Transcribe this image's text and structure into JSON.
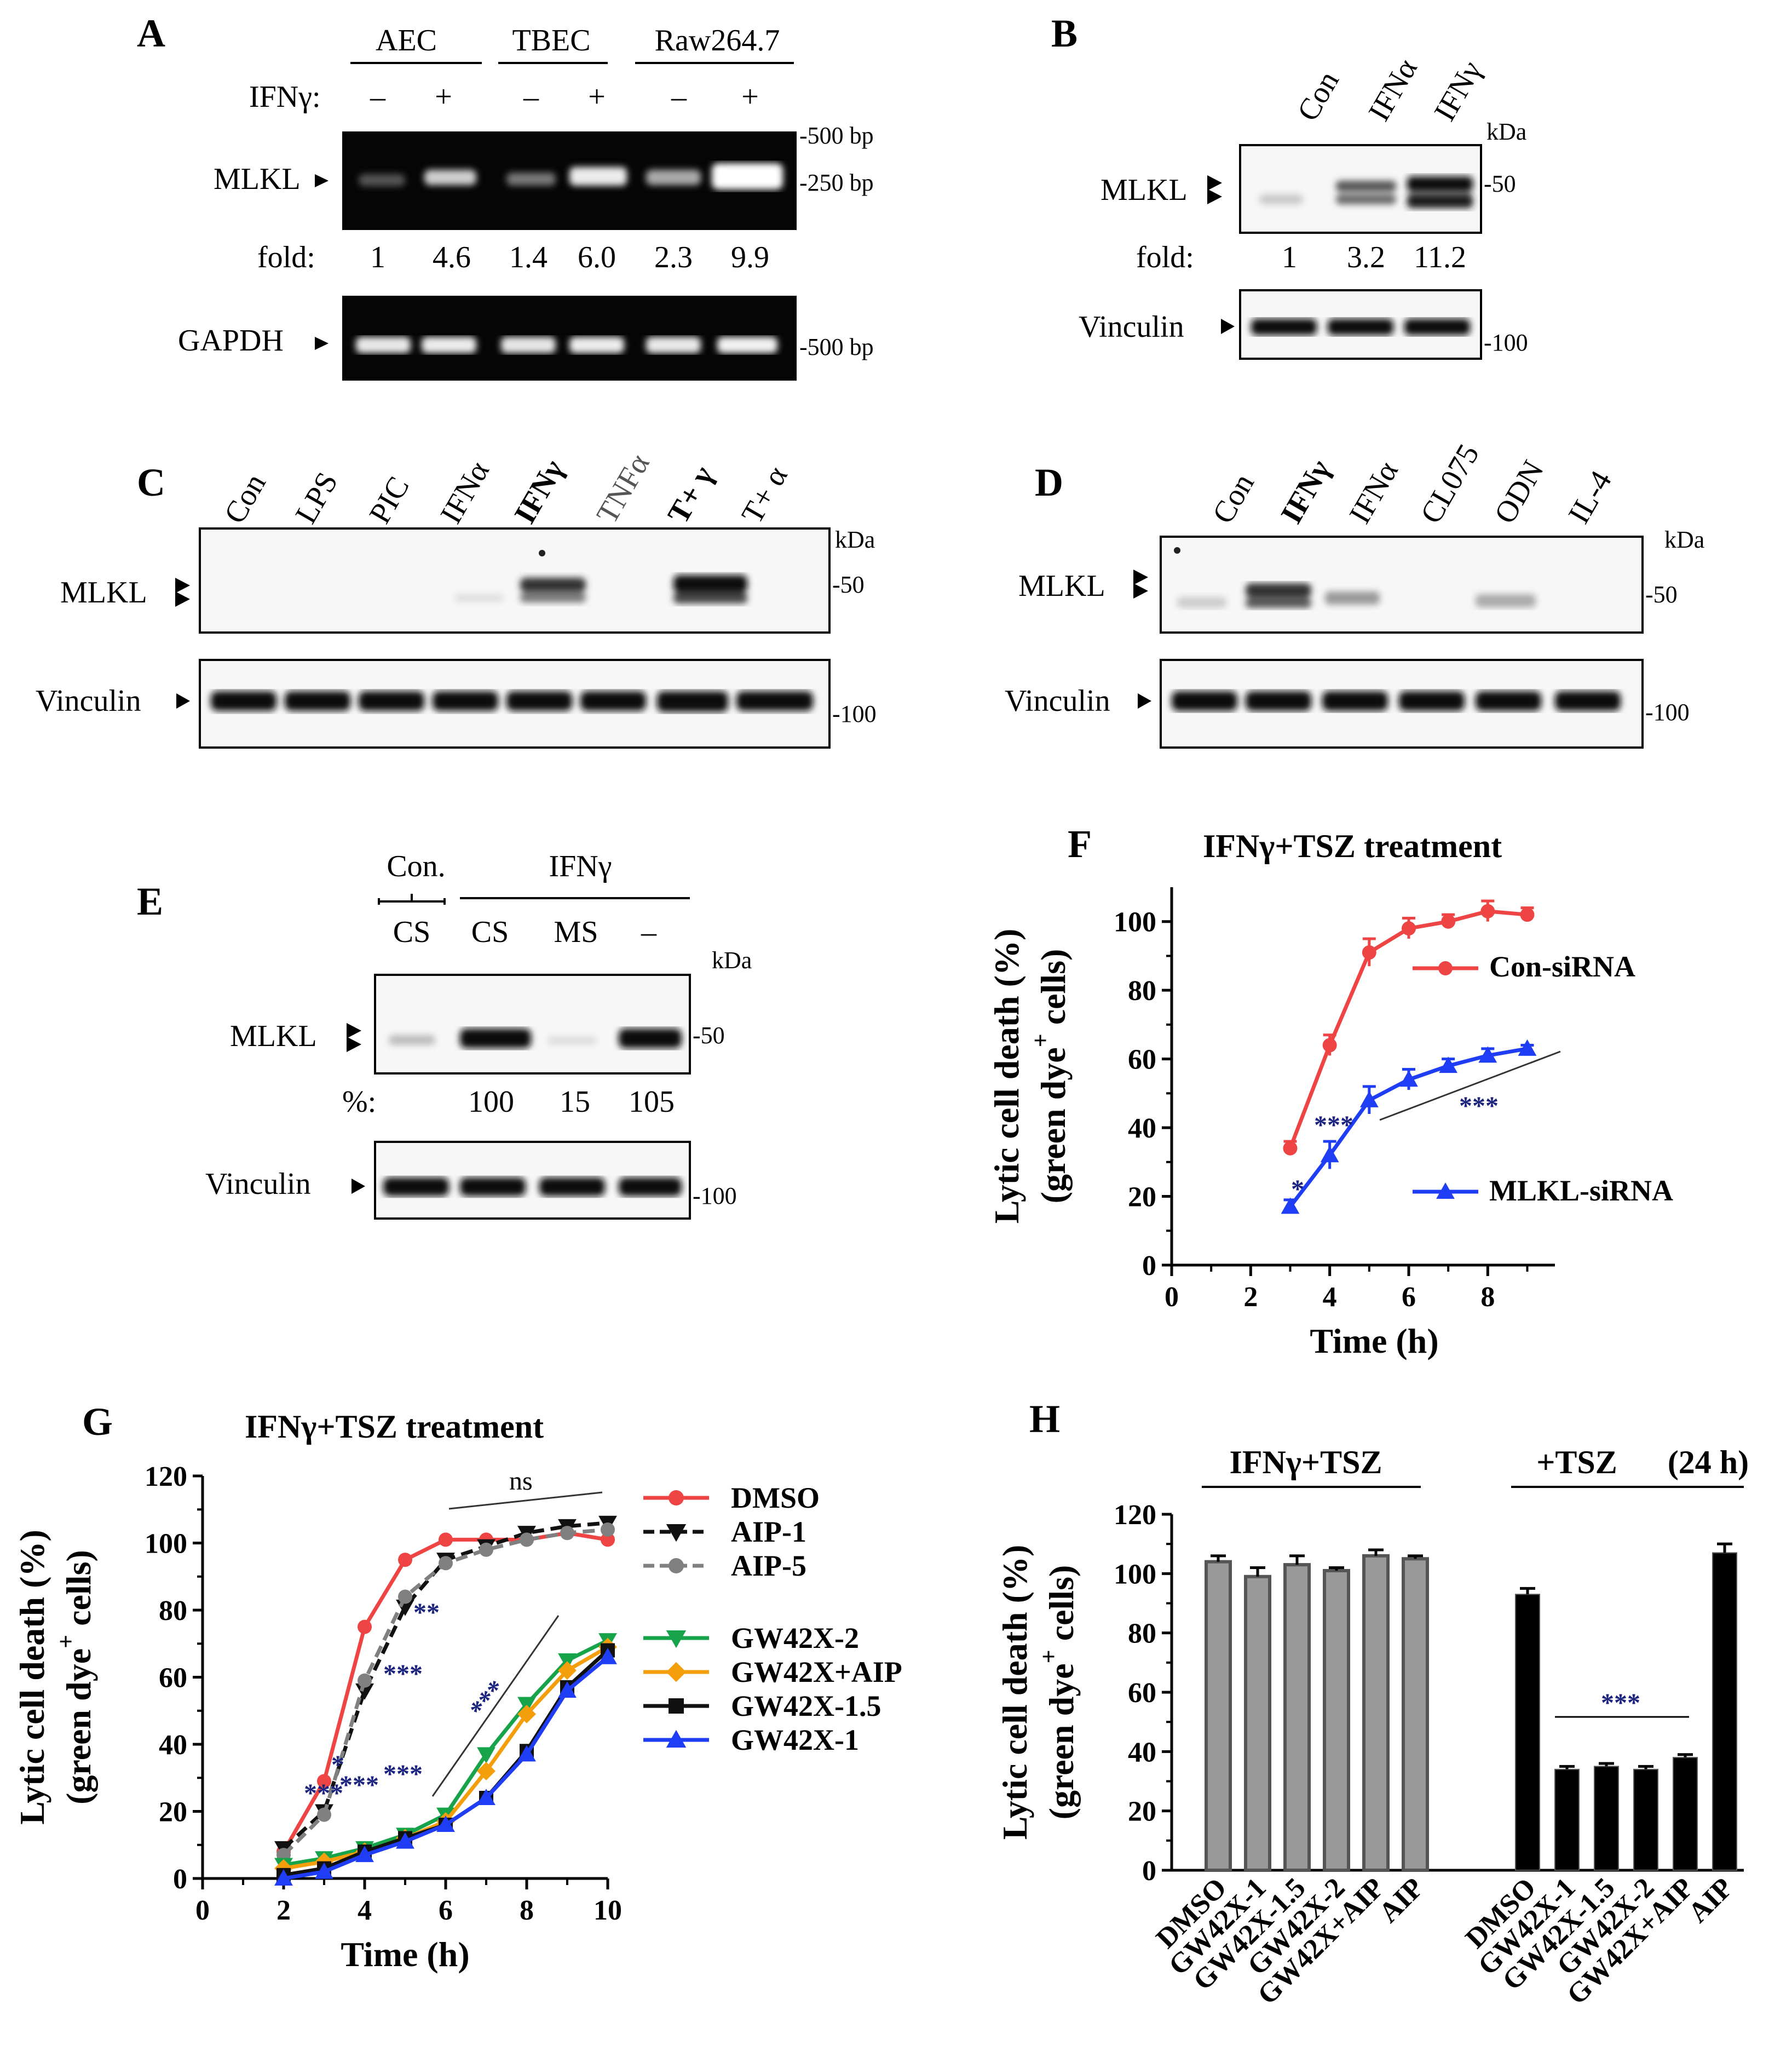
{
  "colors": {
    "red": "#ef4444",
    "blue": "#1e3df5",
    "green": "#16a34a",
    "orange": "#f59e0b",
    "black": "#111111",
    "grey": "#808080",
    "navy": "#1a237e"
  },
  "panels": {
    "A": {
      "letter": "A",
      "groups": [
        "AEC",
        "TBEC",
        "Raw264.7"
      ],
      "treatment_label": "IFNγ:",
      "treatment_marks": [
        "–",
        "+",
        "–",
        "+",
        "–",
        "+"
      ],
      "band1_label": "MLKL",
      "band2_label": "GAPDH",
      "markers": [
        "-500 bp",
        "-250 bp",
        "-500 bp"
      ],
      "fold_label": "fold:",
      "folds": [
        "1",
        "4.6",
        "1.4",
        "6.0",
        "2.3",
        "9.9"
      ]
    },
    "B": {
      "letter": "B",
      "lanes": [
        "Con",
        "IFNα",
        "IFNγ"
      ],
      "kda": "kDa",
      "band1_label": "MLKL",
      "band2_label": "Vinculin",
      "marker1": "-50",
      "marker2": "-100",
      "fold_label": "fold:",
      "folds": [
        "1",
        "3.2",
        "11.2"
      ]
    },
    "C": {
      "letter": "C",
      "lanes": [
        "Con",
        "LPS",
        "PIC",
        "IFNα",
        "IFNγ",
        "TNFα",
        "T+ γ",
        "T+ α"
      ],
      "kda": "kDa",
      "band1_label": "MLKL",
      "band2_label": "Vinculin",
      "marker1": "-50",
      "marker2": "-100"
    },
    "D": {
      "letter": "D",
      "lanes": [
        "Con",
        "IFNγ",
        "IFNα",
        "CL075",
        "ODN",
        "IL-4"
      ],
      "kda": "kDa",
      "band1_label": "MLKL",
      "band2_label": "Vinculin",
      "marker1": "-50",
      "marker2": "-100"
    },
    "E": {
      "letter": "E",
      "group1": "Con.",
      "group2": "IFNγ",
      "lanes": [
        "CS",
        "CS",
        "MS",
        "–"
      ],
      "kda": "kDa",
      "band1_label": "MLKL",
      "band2_label": "Vinculin",
      "marker1": "-50",
      "marker2": "-100",
      "pct_label": "%:",
      "pcts": [
        "",
        "100",
        "15",
        "105"
      ]
    },
    "F": {
      "letter": "F",
      "annotations": {
        "s1": "*",
        "s2": "***",
        "s3": "***"
      }
    },
    "G": {
      "letter": "G",
      "annotations": {
        "ns": "ns",
        "a1": "**",
        "a2": "***",
        "a3": "***",
        "b1": "*",
        "b2": "***",
        "b3": "***",
        "b4": "***"
      }
    },
    "H": {
      "letter": "H",
      "group1": "IFNγ+TSZ",
      "group2": "+TSZ",
      "time_note": "(24 h)",
      "sig": "***"
    }
  },
  "chart_data": [
    {
      "id": "F",
      "type": "line",
      "title": "IFNγ+TSZ treatment",
      "xlabel": "Time (h)",
      "ylabel_line1": "Lytic cell death (%)",
      "ylabel_line2": "(green dye",
      "ylabel_sup": "+",
      "ylabel_end": " cells)",
      "xlim": [
        0,
        9
      ],
      "ylim": [
        0,
        110
      ],
      "xticks": [
        "0",
        "2",
        "4",
        "6",
        "8"
      ],
      "yticks": [
        "0",
        "20",
        "40",
        "60",
        "80",
        "100"
      ],
      "series": [
        {
          "name": "Con-siRNA",
          "color": "#ef4444",
          "marker": "circle",
          "x": [
            3,
            4,
            5,
            6,
            7,
            8,
            9
          ],
          "values": [
            34,
            64,
            91,
            98,
            100,
            103,
            102
          ],
          "err": [
            2,
            3,
            4,
            3,
            2,
            3,
            2
          ]
        },
        {
          "name": "MLKL-siRNA",
          "color": "#1e3df5",
          "marker": "triangle",
          "x": [
            3,
            4,
            5,
            6,
            7,
            8,
            9
          ],
          "values": [
            17,
            32,
            48,
            54,
            58,
            61,
            63
          ],
          "err": [
            2,
            4,
            4,
            3,
            2,
            2,
            1
          ]
        }
      ]
    },
    {
      "id": "G",
      "type": "line",
      "title": "IFNγ+TSZ treatment",
      "xlabel": "Time (h)",
      "ylabel_line1": "Lytic cell death (%)",
      "ylabel_line2": "(green dye",
      "ylabel_sup": "+",
      "ylabel_end": " cells)",
      "xlim": [
        0,
        10
      ],
      "ylim": [
        0,
        120
      ],
      "xticks": [
        "0",
        "2",
        "4",
        "6",
        "8",
        "10"
      ],
      "yticks": [
        "0",
        "20",
        "40",
        "60",
        "80",
        "100",
        "120"
      ],
      "x": [
        2,
        3,
        4,
        5,
        6,
        7,
        8,
        9,
        10
      ],
      "series": [
        {
          "name": "DMSO",
          "color": "#ef4444",
          "marker": "circle",
          "dash": false,
          "values": [
            8,
            29,
            75,
            95,
            101,
            101,
            101,
            103,
            101
          ]
        },
        {
          "name": "AIP-1",
          "color": "#111111",
          "marker": "triangle-down",
          "dash": true,
          "values": [
            9,
            20,
            56,
            81,
            95,
            99,
            103,
            105,
            106
          ]
        },
        {
          "name": "AIP-5",
          "color": "#808080",
          "marker": "circle",
          "dash": true,
          "values": [
            7,
            19,
            59,
            84,
            94,
            98,
            101,
            103,
            104
          ]
        },
        {
          "name": "GW42X-2",
          "color": "#16a34a",
          "marker": "triangle-down",
          "dash": false,
          "values": [
            4,
            6,
            9,
            13,
            19,
            37,
            52,
            65,
            71
          ]
        },
        {
          "name": "GW42X+AIP",
          "color": "#f59e0b",
          "marker": "diamond",
          "dash": false,
          "values": [
            3,
            5,
            8,
            12,
            17,
            32,
            49,
            62,
            69
          ]
        },
        {
          "name": "GW42X-1.5",
          "color": "#111111",
          "marker": "square",
          "dash": false,
          "values": [
            1,
            3,
            8,
            12,
            16,
            24,
            38,
            57,
            68
          ]
        },
        {
          "name": "GW42X-1",
          "color": "#1e3df5",
          "marker": "triangle",
          "dash": false,
          "values": [
            0,
            2,
            7,
            11,
            16,
            24,
            37,
            56,
            66
          ]
        }
      ]
    },
    {
      "id": "H",
      "type": "bar",
      "ylabel_line1": "Lytic cell death (%)",
      "ylabel_line2": "(green dye",
      "ylabel_sup": "+",
      "ylabel_end": " cells)",
      "ylim": [
        0,
        120
      ],
      "yticks": [
        "0",
        "20",
        "40",
        "60",
        "80",
        "100",
        "120"
      ],
      "groups": [
        {
          "name": "IFNγ+TSZ",
          "color": "#999999",
          "categories": [
            "DMSO",
            "GW42X-1",
            "GW42X-1.5",
            "GW42X-2",
            "GW42X+AIP",
            "AIP"
          ],
          "values": [
            104,
            99,
            103,
            101,
            106,
            105
          ],
          "err": [
            2,
            3,
            3,
            1,
            2,
            1
          ]
        },
        {
          "name": "+TSZ",
          "color": "#000000",
          "categories": [
            "DMSO",
            "GW42X-1",
            "GW42X-1.5",
            "GW42X-2",
            "GW42X+AIP",
            "AIP"
          ],
          "values": [
            93,
            34,
            35,
            34,
            38,
            107
          ],
          "err": [
            2,
            1,
            1,
            1,
            1,
            3
          ]
        }
      ]
    }
  ]
}
